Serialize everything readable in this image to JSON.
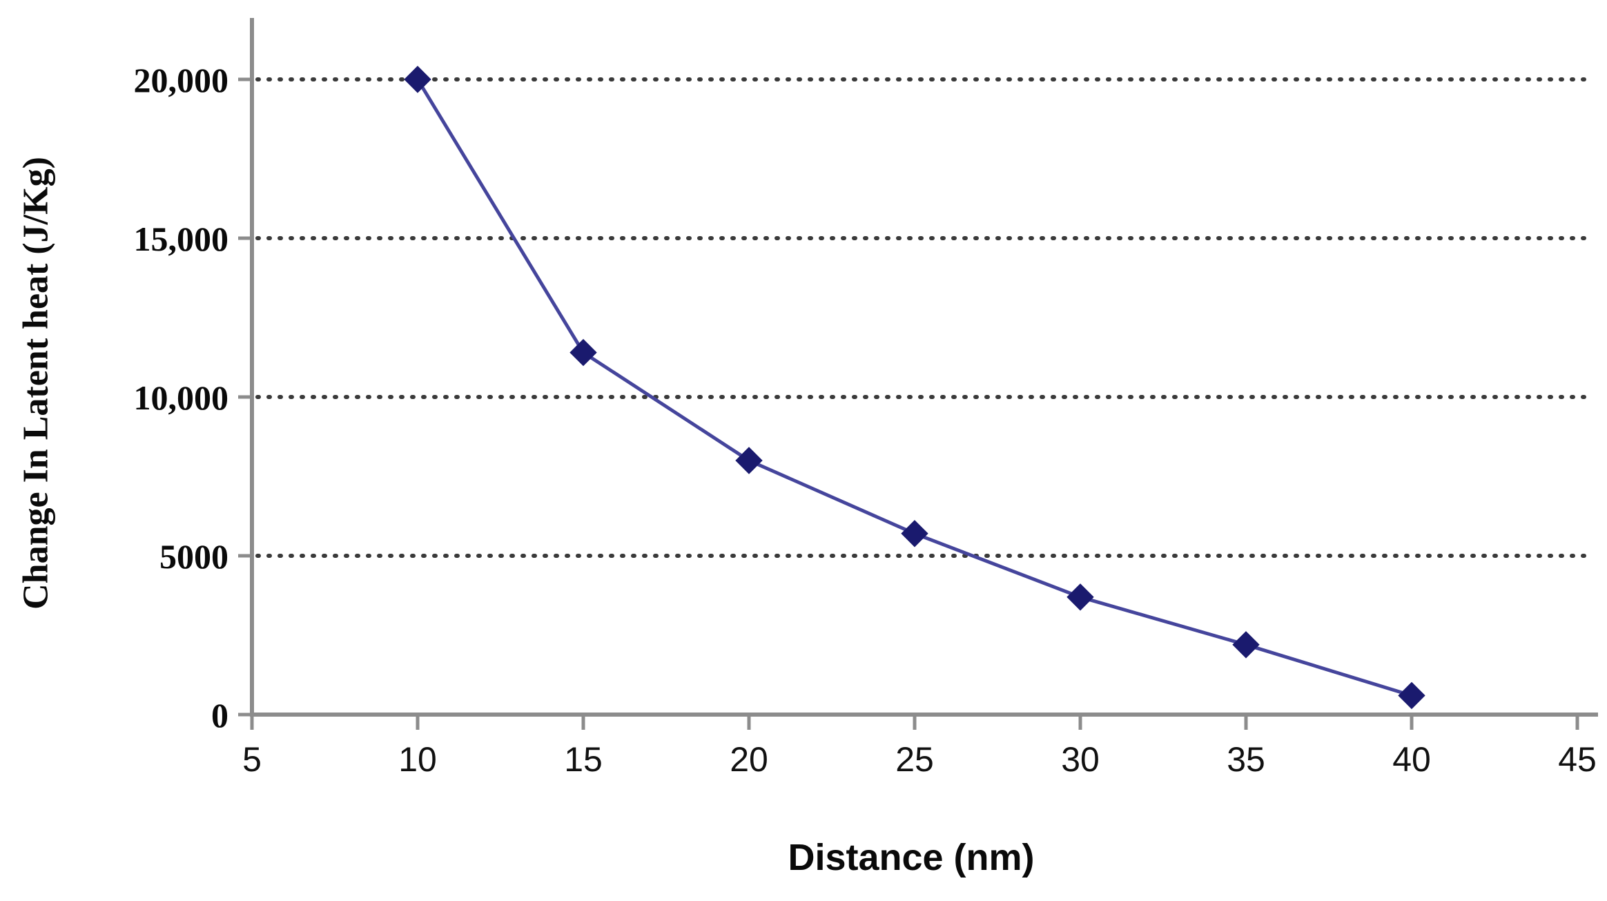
{
  "chart_data": {
    "type": "line",
    "title": "",
    "xlabel": "Distance (nm)",
    "ylabel": "Change In Latent heat (J/Kg)",
    "x": [
      10,
      15,
      20,
      25,
      30,
      35,
      40
    ],
    "y": [
      20000,
      11400,
      8000,
      5700,
      3700,
      2200,
      600
    ],
    "xlim": [
      5,
      45
    ],
    "ylim": [
      0,
      20000
    ],
    "xticks": [
      5,
      10,
      15,
      20,
      25,
      30,
      35,
      40,
      45
    ],
    "xtick_labels": [
      "5",
      "10",
      "15",
      "20",
      "25",
      "30",
      "35",
      "40",
      "45"
    ],
    "yticks": [
      0,
      5000,
      10000,
      15000,
      20000
    ],
    "ytick_labels": [
      "0",
      "5000",
      "10,000",
      "15,000",
      "20,000"
    ],
    "grid": "horizontal-dotted",
    "legend": "none",
    "marker": "diamond",
    "colors": {
      "line": "#45459c",
      "marker": "#1a1a6e",
      "axis": "#8c8c8c",
      "grid": "#3a3a3a",
      "background": "#ffffff",
      "text": "#0a0a0a"
    }
  }
}
